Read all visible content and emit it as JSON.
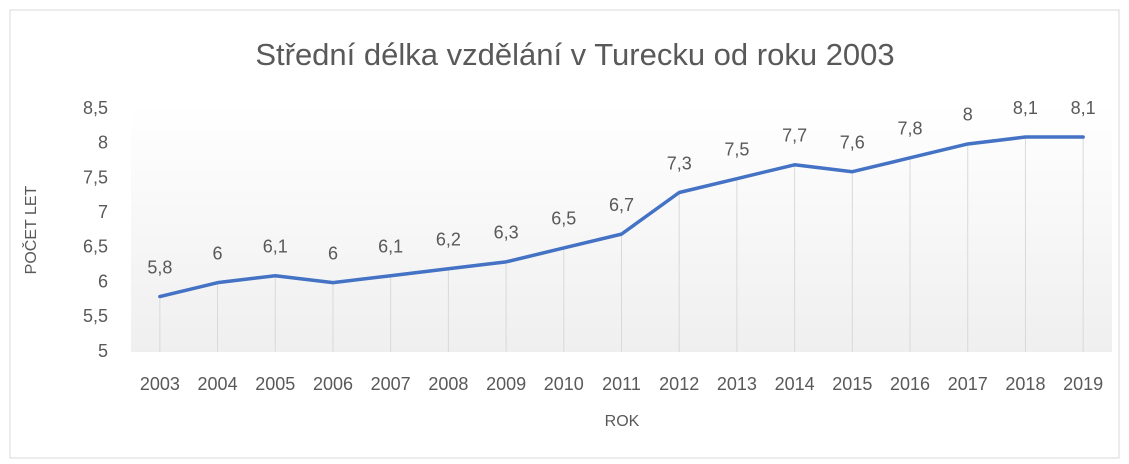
{
  "chart_data": {
    "type": "line",
    "title": "Střední délka vzdělání v Turecku od roku 2003",
    "x_label": "ROK",
    "y_label": "POČET LET",
    "categories": [
      "2003",
      "2004",
      "2005",
      "2006",
      "2007",
      "2008",
      "2009",
      "2010",
      "2011",
      "2012",
      "2013",
      "2014",
      "2015",
      "2016",
      "2017",
      "2018",
      "2019"
    ],
    "series": [
      {
        "name": "Střední délka vzdělání",
        "color": "#4472c4",
        "values": [
          5.8,
          6,
          6.1,
          6,
          6.1,
          6.2,
          6.3,
          6.5,
          6.7,
          7.3,
          7.5,
          7.7,
          7.6,
          7.8,
          8,
          8.1,
          8.1
        ],
        "value_labels": [
          "5,8",
          "6",
          "6,1",
          "6",
          "6,1",
          "6,2",
          "6,3",
          "6,5",
          "6,7",
          "7,3",
          "7,5",
          "7,7",
          "7,6",
          "7,8",
          "8",
          "8,1",
          "8,1"
        ]
      }
    ],
    "ylim": [
      5,
      8.5
    ],
    "yticks": [
      5,
      {
        "value": 5.5,
        "label": "5,5"
      },
      6,
      {
        "value": 6.5,
        "label": "6,5"
      },
      7,
      {
        "value": 7.5,
        "label": "7,5"
      },
      8,
      {
        "value": 8.5,
        "label": "8,5"
      }
    ],
    "drop_lines": true
  }
}
